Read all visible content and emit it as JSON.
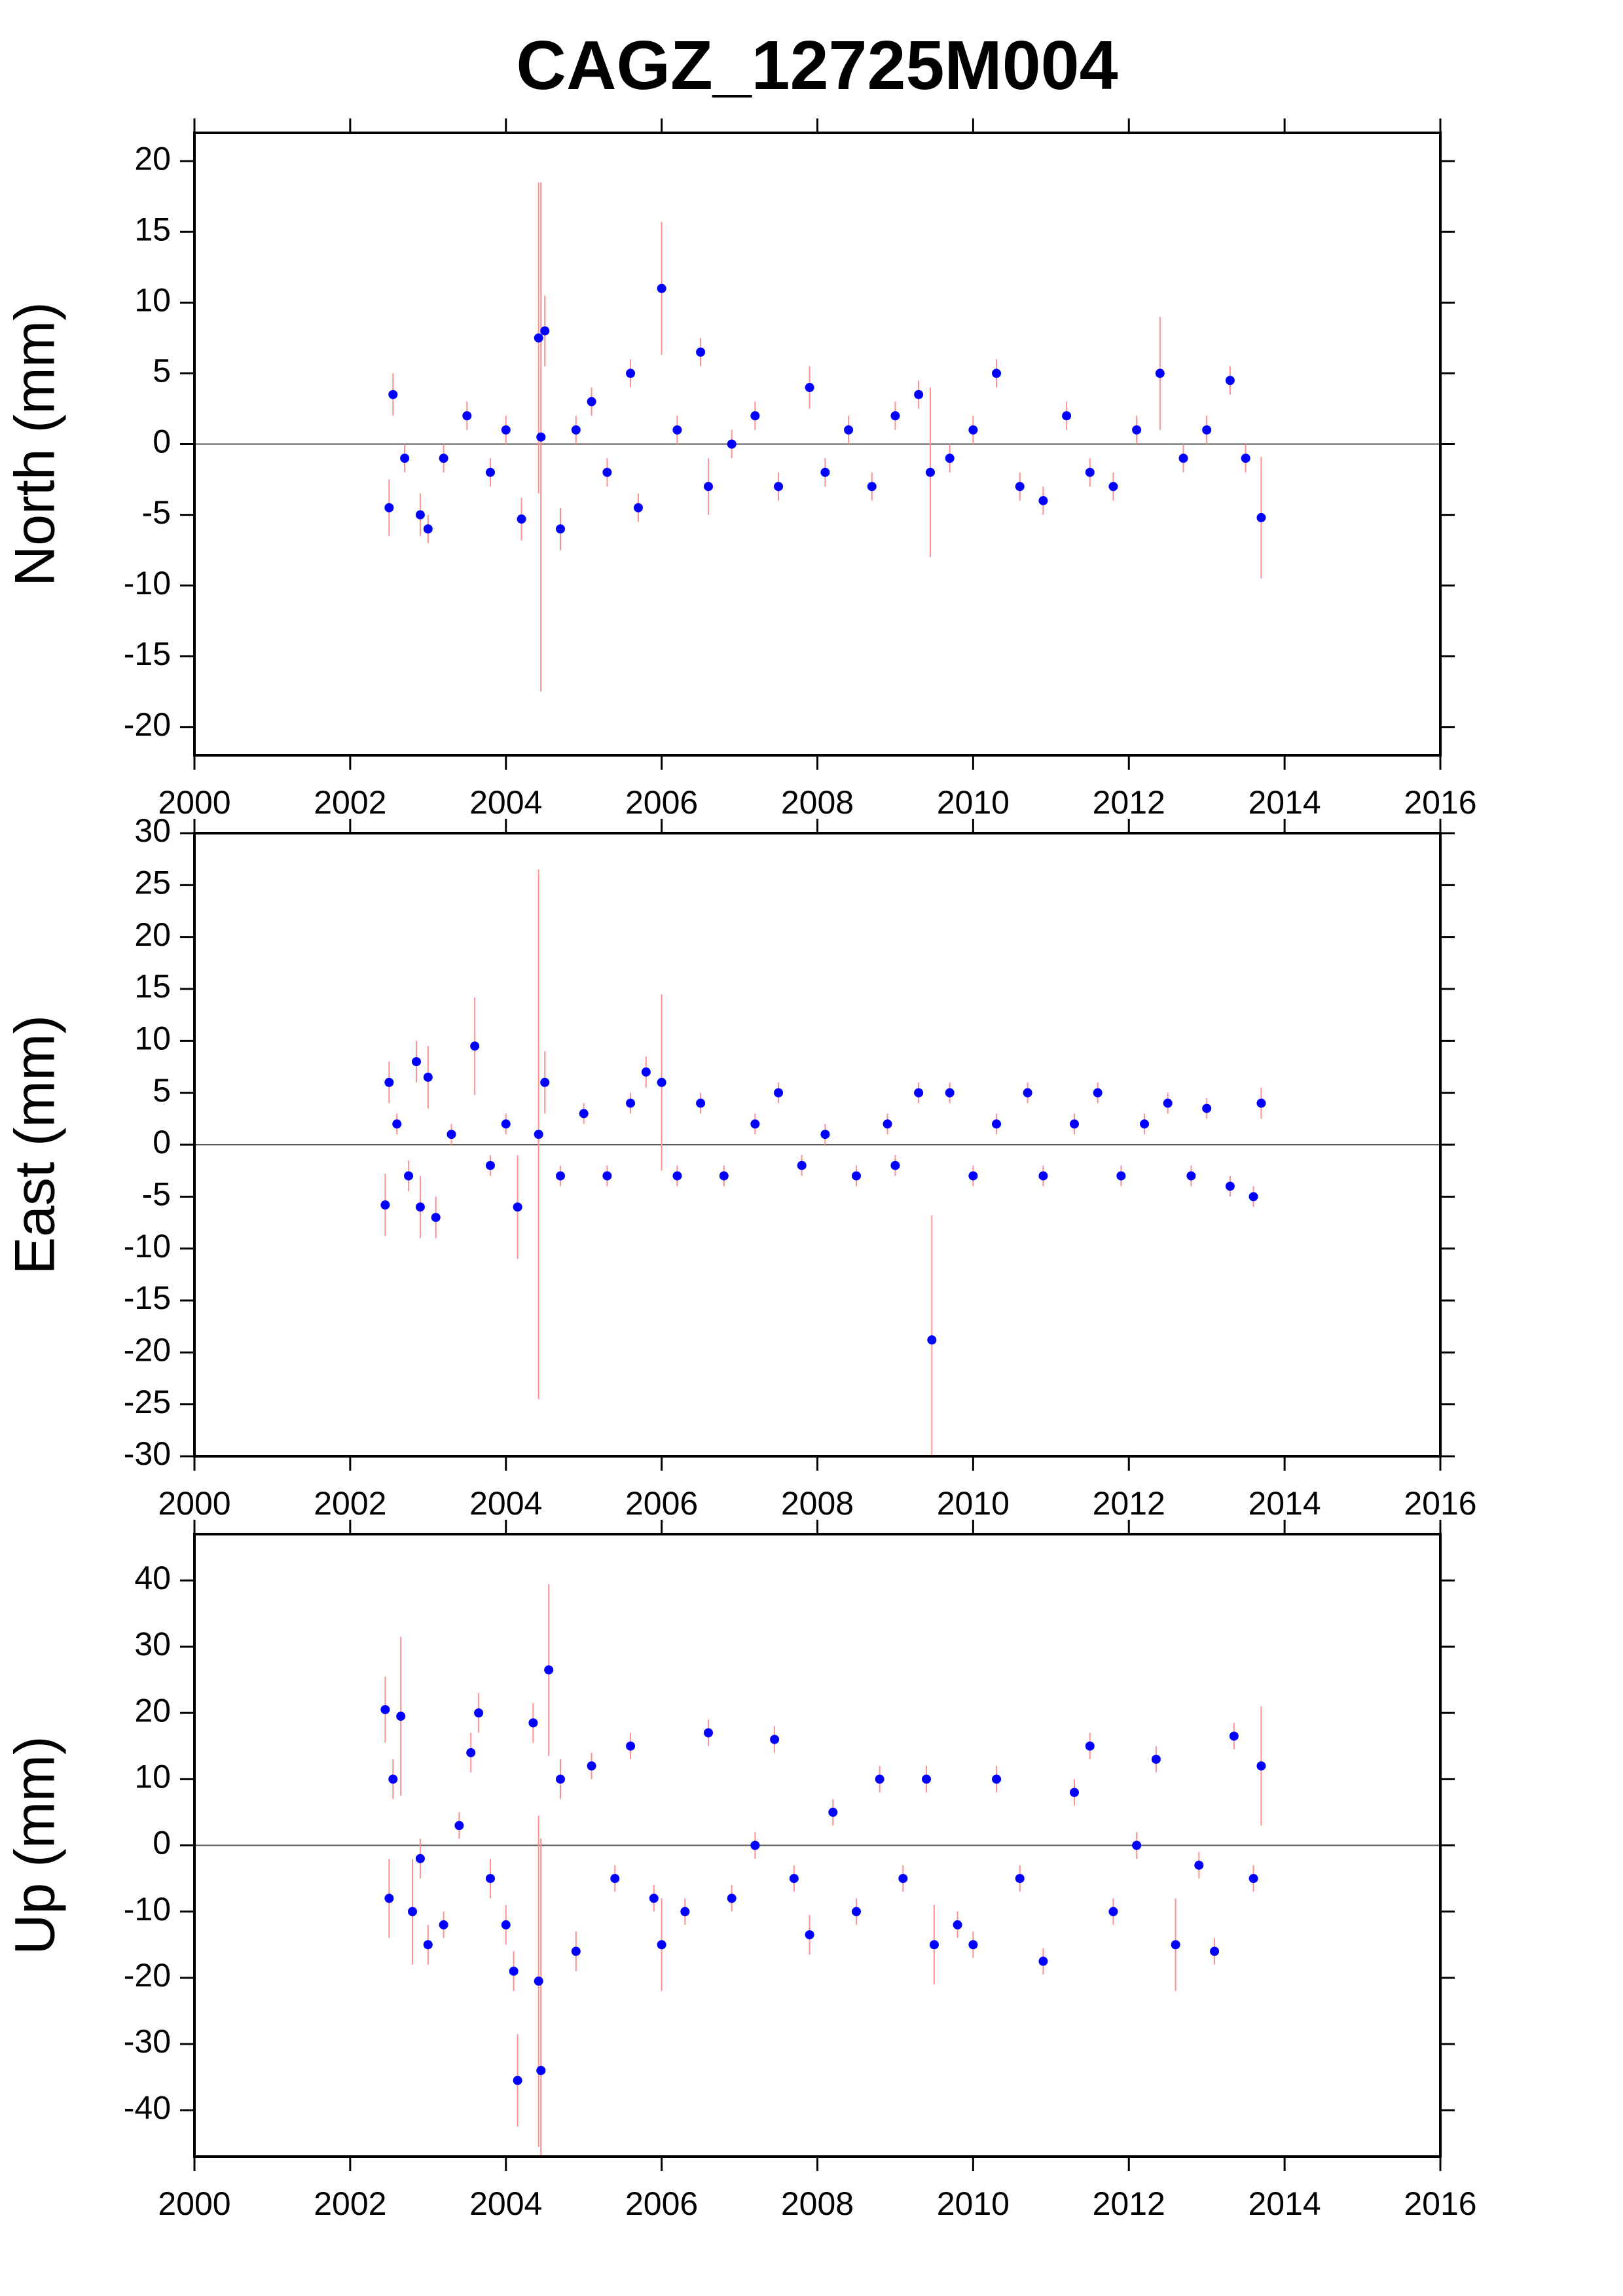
{
  "chart_data": [
    {
      "type": "scatter",
      "title": "CAGZ_12725M004",
      "ylabel": "North (mm)",
      "color": "#0000ff",
      "error_color": "#ff9090",
      "reference_line": 0,
      "xlim": [
        2000,
        2016
      ],
      "xticks": [
        2000,
        2002,
        2004,
        2006,
        2008,
        2010,
        2012,
        2014,
        2016
      ],
      "ylim": [
        -22,
        22
      ],
      "yticks": [
        -20,
        -15,
        -10,
        -5,
        0,
        5,
        10,
        15,
        20
      ],
      "x": [
        2002.5,
        2002.55,
        2002.7,
        2002.9,
        2003.0,
        2003.2,
        2003.5,
        2003.8,
        2004.0,
        2004.2,
        2004.42,
        2004.45,
        2004.5,
        2004.7,
        2004.9,
        2005.1,
        2005.3,
        2005.6,
        2005.7,
        2006.0,
        2006.2,
        2006.5,
        2006.6,
        2006.9,
        2007.2,
        2007.5,
        2007.9,
        2008.1,
        2008.4,
        2008.7,
        2009.0,
        2009.3,
        2009.45,
        2009.7,
        2010.0,
        2010.3,
        2010.6,
        2010.9,
        2011.2,
        2011.5,
        2011.8,
        2012.1,
        2012.4,
        2012.7,
        2013.0,
        2013.3,
        2013.5,
        2013.7
      ],
      "values": [
        -4.5,
        3.5,
        -1,
        -5,
        -6,
        -1,
        2,
        -2,
        1,
        -5.3,
        7.5,
        0.5,
        8,
        -6,
        1,
        3,
        -2,
        5,
        -4.5,
        11,
        1,
        6.5,
        -3,
        0,
        2,
        -3,
        4,
        -2,
        1,
        -3,
        2,
        3.5,
        -2,
        -1,
        1,
        5,
        -3,
        -4,
        2,
        -2,
        -3,
        1,
        5,
        -1,
        1,
        4.5,
        -1,
        -5.2
      ],
      "errors": [
        2,
        1.5,
        1,
        1.5,
        1,
        1,
        1,
        1,
        1,
        1.5,
        11,
        18,
        2.5,
        1.5,
        1,
        1,
        1,
        1,
        1,
        4.7,
        1,
        1,
        2,
        1,
        1,
        1,
        1.5,
        1,
        1,
        1,
        1,
        1,
        6,
        1,
        1,
        1,
        1,
        1,
        1,
        1,
        1,
        1,
        4,
        1,
        1,
        1,
        1,
        4.3
      ]
    },
    {
      "type": "scatter",
      "ylabel": "East (mm)",
      "color": "#0000ff",
      "error_color": "#ff9090",
      "reference_line": 0,
      "xlim": [
        2000,
        2016
      ],
      "xticks": [
        2000,
        2002,
        2004,
        2006,
        2008,
        2010,
        2012,
        2014,
        2016
      ],
      "ylim": [
        -30,
        30
      ],
      "yticks": [
        -30,
        -25,
        -20,
        -15,
        -10,
        -5,
        0,
        5,
        10,
        15,
        20,
        25,
        30
      ],
      "x": [
        2002.45,
        2002.5,
        2002.6,
        2002.75,
        2002.85,
        2002.9,
        2003.0,
        2003.1,
        2003.3,
        2003.6,
        2003.8,
        2004.0,
        2004.15,
        2004.42,
        2004.5,
        2004.7,
        2005.0,
        2005.3,
        2005.6,
        2005.8,
        2006.0,
        2006.2,
        2006.5,
        2006.8,
        2007.2,
        2007.5,
        2007.8,
        2008.1,
        2008.5,
        2008.9,
        2009.0,
        2009.3,
        2009.47,
        2009.7,
        2010.0,
        2010.3,
        2010.7,
        2010.9,
        2011.3,
        2011.6,
        2011.9,
        2012.2,
        2012.5,
        2012.8,
        2013.0,
        2013.3,
        2013.6,
        2013.7
      ],
      "values": [
        -5.8,
        6,
        2,
        -3,
        8,
        -6,
        6.5,
        -7,
        1,
        9.5,
        -2,
        2,
        -6,
        1,
        6,
        -3,
        3,
        -3,
        4,
        7,
        6,
        -3,
        4,
        -3,
        2,
        5,
        -2,
        1,
        -3,
        2,
        -2,
        5,
        -18.8,
        5,
        -3,
        2,
        5,
        -3,
        2,
        5,
        -3,
        2,
        4,
        -3,
        3.5,
        -4,
        -5,
        4
      ],
      "errors": [
        3,
        2,
        1,
        1.5,
        2,
        3,
        3,
        2,
        1,
        4.7,
        1,
        1,
        5,
        25.5,
        3,
        1,
        1,
        1,
        1,
        1.5,
        8.5,
        1,
        1,
        1,
        1,
        1,
        1,
        1,
        1,
        1,
        1,
        1,
        12,
        1,
        1,
        1,
        1,
        1,
        1,
        1,
        1,
        1,
        1,
        1,
        1,
        1,
        1,
        1.5
      ]
    },
    {
      "type": "scatter",
      "ylabel": "Up (mm)",
      "color": "#0000ff",
      "error_color": "#ff9090",
      "reference_line": 0,
      "xlim": [
        2000,
        2016
      ],
      "xticks": [
        2000,
        2002,
        2004,
        2006,
        2008,
        2010,
        2012,
        2014,
        2016
      ],
      "ylim": [
        -47,
        47
      ],
      "yticks": [
        -40,
        -30,
        -20,
        -10,
        0,
        10,
        20,
        30,
        40
      ],
      "x": [
        2002.45,
        2002.5,
        2002.55,
        2002.65,
        2002.8,
        2002.9,
        2003.0,
        2003.2,
        2003.4,
        2003.55,
        2003.65,
        2003.8,
        2004.0,
        2004.1,
        2004.15,
        2004.35,
        2004.42,
        2004.45,
        2004.55,
        2004.7,
        2004.9,
        2005.1,
        2005.4,
        2005.6,
        2005.9,
        2006.0,
        2006.3,
        2006.6,
        2006.9,
        2007.2,
        2007.45,
        2007.7,
        2007.9,
        2008.2,
        2008.5,
        2008.8,
        2009.1,
        2009.4,
        2009.5,
        2009.8,
        2010.0,
        2010.3,
        2010.6,
        2010.9,
        2011.3,
        2011.5,
        2011.8,
        2012.1,
        2012.35,
        2012.6,
        2012.9,
        2013.1,
        2013.35,
        2013.6,
        2013.7
      ],
      "values": [
        20.5,
        -8,
        10,
        19.5,
        -10,
        -2,
        -15,
        -12,
        3,
        14,
        20,
        -5,
        -12,
        -19,
        -35.5,
        18.5,
        -20.5,
        -34,
        26.5,
        10,
        -16,
        12,
        -5,
        15,
        -8,
        -15,
        -10,
        17,
        -8,
        0,
        16,
        -5,
        -13.5,
        5,
        -10,
        10,
        -5,
        10,
        -15,
        -12,
        -15,
        10,
        -5,
        -17.5,
        8,
        15,
        -10,
        0,
        13,
        -15,
        -3,
        -16,
        16.5,
        -5,
        12
      ],
      "errors": [
        5,
        6,
        3,
        12,
        8,
        3,
        3,
        2,
        2,
        3,
        3,
        3,
        3,
        3,
        7,
        3,
        25,
        35,
        13,
        3,
        3,
        2,
        2,
        2,
        2,
        7,
        2,
        2,
        2,
        2,
        2,
        2,
        3,
        2,
        2,
        2,
        2,
        2,
        6,
        2,
        2,
        2,
        2,
        2,
        2,
        2,
        2,
        2,
        2,
        7,
        2,
        2,
        2,
        2,
        9
      ]
    }
  ]
}
